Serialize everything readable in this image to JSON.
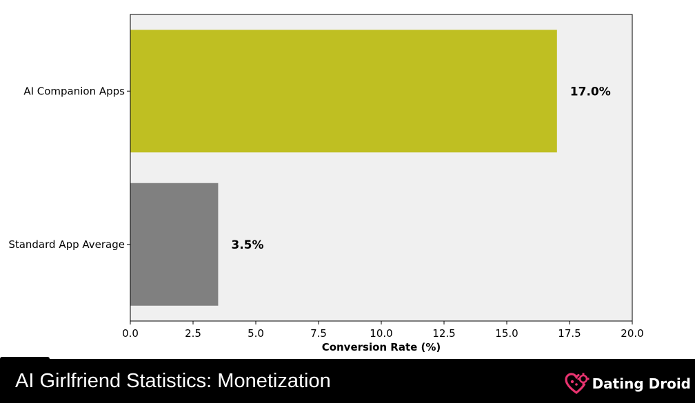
{
  "chart_data": {
    "type": "bar",
    "orientation": "horizontal",
    "categories": [
      "AI Companion Apps",
      "Standard App Average"
    ],
    "values": [
      17.0,
      3.5
    ],
    "value_labels": [
      "17.0%",
      "3.5%"
    ],
    "xlabel": "Conversion Rate (%)",
    "ylabel": "",
    "xlim": [
      0,
      20
    ],
    "xticks": [
      "0.0",
      "2.5",
      "5.0",
      "7.5",
      "10.0",
      "12.5",
      "15.0",
      "17.5",
      "20.0"
    ],
    "bar_colors": [
      "#bfbf22",
      "#808080"
    ],
    "plot_background": "#f0f0f0",
    "grid": false,
    "legend": "none"
  },
  "footer": {
    "title": "AI Girlfriend Statistics: Monetization",
    "brand": "Dating Droid",
    "brand_icon": "heart-gear-icon",
    "brand_color": "#e8336f"
  }
}
